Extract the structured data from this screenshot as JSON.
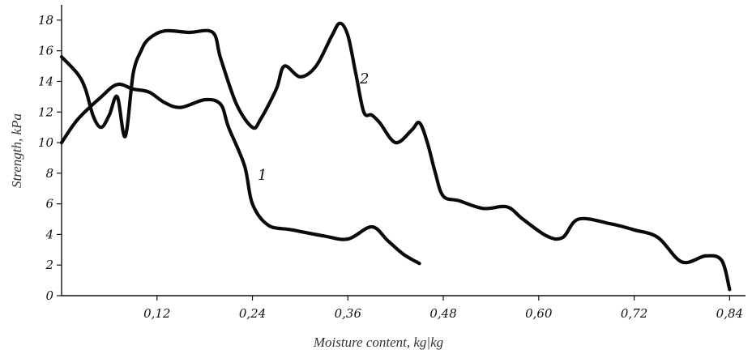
{
  "chart_data": {
    "type": "line",
    "xlabel": "Moisture content, kg|kg",
    "ylabel": "Strength, kPa",
    "xlim": [
      0.0,
      0.86
    ],
    "ylim": [
      0,
      19
    ],
    "x_ticks": [
      0.12,
      0.24,
      0.36,
      0.48,
      0.6,
      0.72,
      0.84
    ],
    "x_tick_labels": [
      "0,12",
      "0,24",
      "0,36",
      "0,48",
      "0,60",
      "0,72",
      "0,84"
    ],
    "y_ticks": [
      0,
      2,
      4,
      6,
      8,
      10,
      12,
      14,
      16,
      18
    ],
    "y_tick_labels": [
      "0",
      "2",
      "4",
      "6",
      "8",
      "10",
      "12",
      "14",
      "16",
      "18"
    ],
    "grid": false,
    "legend": "none",
    "series": [
      {
        "name": "1",
        "x": [
          0.0,
          0.02,
          0.05,
          0.07,
          0.09,
          0.11,
          0.13,
          0.15,
          0.18,
          0.2,
          0.21,
          0.23,
          0.24,
          0.26,
          0.29,
          0.33,
          0.36,
          0.39,
          0.41,
          0.43,
          0.45
        ],
        "y": [
          10.0,
          11.5,
          13.0,
          13.8,
          13.5,
          13.3,
          12.6,
          12.3,
          12.8,
          12.5,
          11.0,
          8.5,
          6.0,
          4.6,
          4.3,
          3.9,
          3.7,
          4.5,
          3.6,
          2.7,
          2.1
        ]
      },
      {
        "name": "2",
        "x": [
          0.0,
          0.02,
          0.03,
          0.04,
          0.05,
          0.06,
          0.07,
          0.08,
          0.09,
          0.1,
          0.11,
          0.13,
          0.16,
          0.19,
          0.2,
          0.22,
          0.24,
          0.25,
          0.27,
          0.28,
          0.3,
          0.32,
          0.34,
          0.35,
          0.36,
          0.37,
          0.38,
          0.39,
          0.4,
          0.42,
          0.44,
          0.45,
          0.46,
          0.47,
          0.48,
          0.5,
          0.53,
          0.56,
          0.58,
          0.61,
          0.63,
          0.65,
          0.69,
          0.72,
          0.75,
          0.78,
          0.81,
          0.83,
          0.84
        ],
        "y": [
          15.6,
          14.5,
          13.5,
          11.7,
          11.0,
          11.8,
          13.0,
          10.4,
          14.5,
          16.0,
          16.8,
          17.3,
          17.2,
          17.2,
          15.5,
          12.5,
          11.0,
          11.5,
          13.5,
          15.0,
          14.3,
          15.0,
          17.0,
          17.8,
          17.0,
          14.5,
          12.0,
          11.8,
          11.3,
          10.0,
          10.8,
          11.3,
          10.0,
          8.0,
          6.5,
          6.2,
          5.7,
          5.8,
          5.0,
          3.9,
          3.8,
          5.0,
          4.7,
          4.3,
          3.8,
          2.2,
          2.6,
          2.3,
          0.4
        ]
      }
    ]
  }
}
